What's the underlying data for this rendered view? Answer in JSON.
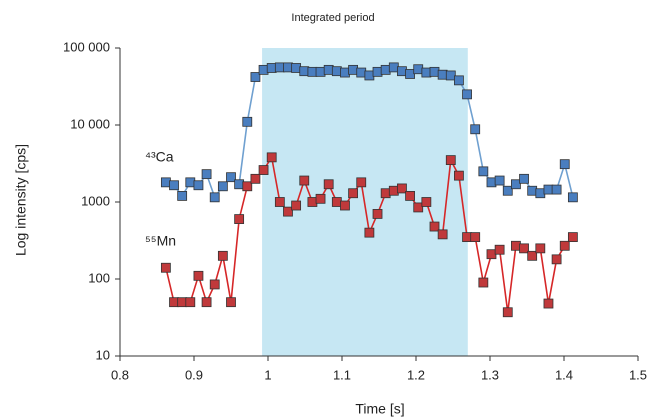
{
  "chart_data": {
    "type": "line",
    "log_y": true,
    "annotation": "Integrated period",
    "shaded_range": [
      0.992,
      1.27
    ],
    "shade_color": "#c6e7f3",
    "x_label": "Time [s]",
    "y_label": "Log intensity [cps]",
    "xlim": [
      0.8,
      1.5
    ],
    "xticks": [
      0.8,
      0.9,
      1,
      1.1,
      1.2,
      1.3,
      1.4,
      1.5
    ],
    "ylim": [
      10,
      100000
    ],
    "yticks": [
      10,
      100,
      1000,
      {
        "value": 10000,
        "label": "10 000"
      },
      {
        "value": 100000,
        "label": "100 000"
      }
    ],
    "x": [
      0.862,
      0.873,
      0.884,
      0.895,
      0.906,
      0.917,
      0.928,
      0.939,
      0.95,
      0.961,
      0.972,
      0.983,
      0.994,
      1.005,
      1.016,
      1.027,
      1.038,
      1.049,
      1.06,
      1.071,
      1.082,
      1.093,
      1.104,
      1.115,
      1.126,
      1.137,
      1.148,
      1.159,
      1.17,
      1.181,
      1.192,
      1.203,
      1.214,
      1.225,
      1.236,
      1.247,
      1.258,
      1.269,
      1.28,
      1.291,
      1.302,
      1.313,
      1.324,
      1.335,
      1.346,
      1.357,
      1.368,
      1.379,
      1.39,
      1.401,
      1.412
    ],
    "series": [
      {
        "name": "⁴³Ca",
        "color": "#4a7ebf",
        "line_color": "#6fa0d0",
        "values": [
          1800,
          1650,
          1200,
          1800,
          1650,
          2300,
          1150,
          1600,
          2100,
          1700,
          11000,
          42000,
          52000,
          55000,
          56000,
          56000,
          55000,
          50000,
          49000,
          49000,
          52000,
          50000,
          48000,
          52000,
          48000,
          44000,
          49000,
          52000,
          56000,
          50000,
          46000,
          53000,
          48000,
          49000,
          45000,
          44000,
          38000,
          25000,
          8800,
          2500,
          1800,
          1900,
          1400,
          1700,
          2000,
          1400,
          1300,
          1450,
          1450,
          3100,
          1150
        ]
      },
      {
        "name": "⁵⁵Mn",
        "color": "#c0393b",
        "line_color": "#d62728",
        "values": [
          140,
          50,
          50,
          50,
          110,
          50,
          85,
          200,
          50,
          600,
          1600,
          2000,
          2600,
          3800,
          1000,
          750,
          900,
          1900,
          1000,
          1100,
          1700,
          1000,
          900,
          1300,
          1800,
          400,
          700,
          1300,
          1400,
          1500,
          1200,
          850,
          1000,
          480,
          380,
          3500,
          2200,
          350,
          350,
          90,
          210,
          240,
          37,
          270,
          250,
          200,
          250,
          48,
          180,
          270,
          350
        ]
      }
    ]
  }
}
